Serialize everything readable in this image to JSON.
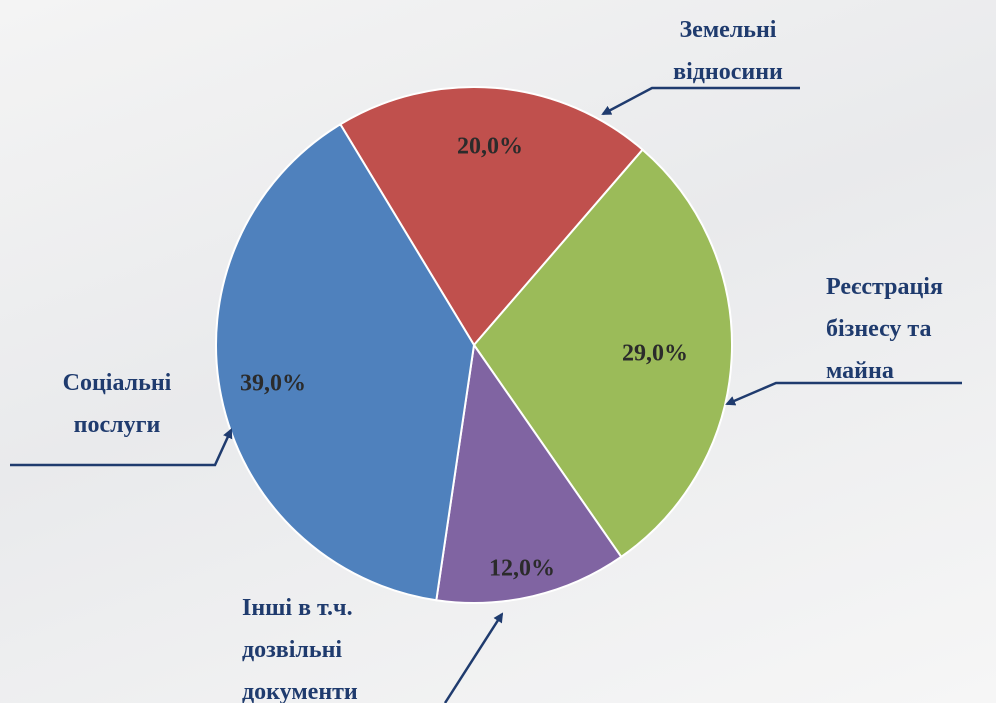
{
  "chart_data": {
    "type": "pie",
    "categories": [
      "Земельні відносини",
      "Реєстрація бізнесу та майна",
      "Інші в т.ч. дозвільні документи",
      "Соціальні послуги"
    ],
    "values": [
      20,
      29,
      12,
      39
    ],
    "value_labels": [
      "20,0%",
      "29,0%",
      "12,0%",
      "39,0%"
    ],
    "colors": [
      "#c0504d",
      "#9bbb59",
      "#8064a2",
      "#4f81bd"
    ]
  }
}
